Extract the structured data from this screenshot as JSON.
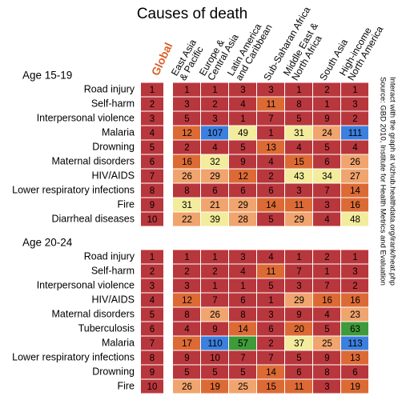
{
  "chart_data": {
    "type": "heatmap",
    "title": "Causes of death",
    "global_label": "Global",
    "columns": [
      [
        "East Asia",
        "& Pacific"
      ],
      [
        "Europe &",
        "Central Asia"
      ],
      [
        "Latin America",
        "and Caribbean"
      ],
      [
        "Sub-Saharan Africa"
      ],
      [
        "Middle East &",
        "North Africa"
      ],
      [
        "South Asia"
      ],
      [
        "High-income",
        "North America"
      ]
    ],
    "groups": [
      {
        "label": "Age 15-19",
        "rows": [
          "Road injury",
          "Self-harm",
          "Interpersonal violence",
          "Malaria",
          "Drowning",
          "Maternal disorders",
          "HIV/AIDS",
          "Lower respiratory infections",
          "Fire",
          "Diarrheal diseases"
        ],
        "global": [
          1,
          2,
          3,
          4,
          5,
          6,
          7,
          8,
          9,
          10
        ],
        "values": [
          [
            1,
            1,
            3,
            3,
            1,
            2,
            1
          ],
          [
            3,
            2,
            4,
            11,
            8,
            1,
            3
          ],
          [
            5,
            3,
            1,
            7,
            5,
            9,
            2
          ],
          [
            12,
            107,
            49,
            1,
            31,
            24,
            111
          ],
          [
            2,
            4,
            5,
            13,
            4,
            5,
            4
          ],
          [
            16,
            32,
            9,
            4,
            15,
            6,
            26
          ],
          [
            26,
            29,
            12,
            2,
            43,
            34,
            27
          ],
          [
            8,
            6,
            6,
            6,
            3,
            7,
            14
          ],
          [
            31,
            21,
            29,
            14,
            11,
            3,
            16
          ],
          [
            22,
            39,
            28,
            5,
            29,
            4,
            48
          ]
        ]
      },
      {
        "label": "Age 20-24",
        "rows": [
          "Road injury",
          "Self-harm",
          "Interpersonal violence",
          "HIV/AIDS",
          "Maternal disorders",
          "Tuberculosis",
          "Malaria",
          "Lower respiratory infections",
          "Drowning",
          "Fire"
        ],
        "global": [
          1,
          2,
          3,
          4,
          5,
          6,
          7,
          8,
          9,
          10
        ],
        "values": [
          [
            1,
            1,
            3,
            4,
            1,
            2,
            1
          ],
          [
            2,
            2,
            4,
            11,
            7,
            1,
            3
          ],
          [
            3,
            1,
            1,
            5,
            3,
            7,
            2
          ],
          [
            12,
            7,
            6,
            1,
            29,
            16,
            16
          ],
          [
            8,
            26,
            8,
            3,
            9,
            4,
            23
          ],
          [
            4,
            9,
            14,
            6,
            20,
            5,
            63
          ],
          [
            17,
            110,
            57,
            2,
            37,
            25,
            113
          ],
          [
            9,
            10,
            7,
            7,
            5,
            9,
            13
          ],
          [
            5,
            5,
            5,
            14,
            6,
            8,
            6
          ],
          [
            26,
            19,
            25,
            15,
            11,
            3,
            19
          ]
        ]
      }
    ],
    "global_color": "#b8373d",
    "color_thresholds": [
      10,
      20,
      30,
      50,
      100
    ],
    "colors": [
      "#b8373d",
      "#dc6a35",
      "#f0a46e",
      "#f2ec9c",
      "#3f9a3a",
      "#3b7fdf"
    ],
    "source": [
      "Source: GBD 2010, Institute for Health Metrics and Evaluation",
      "Interact with the graph at vizhub.healthdata.org/irank/heat.php"
    ]
  }
}
